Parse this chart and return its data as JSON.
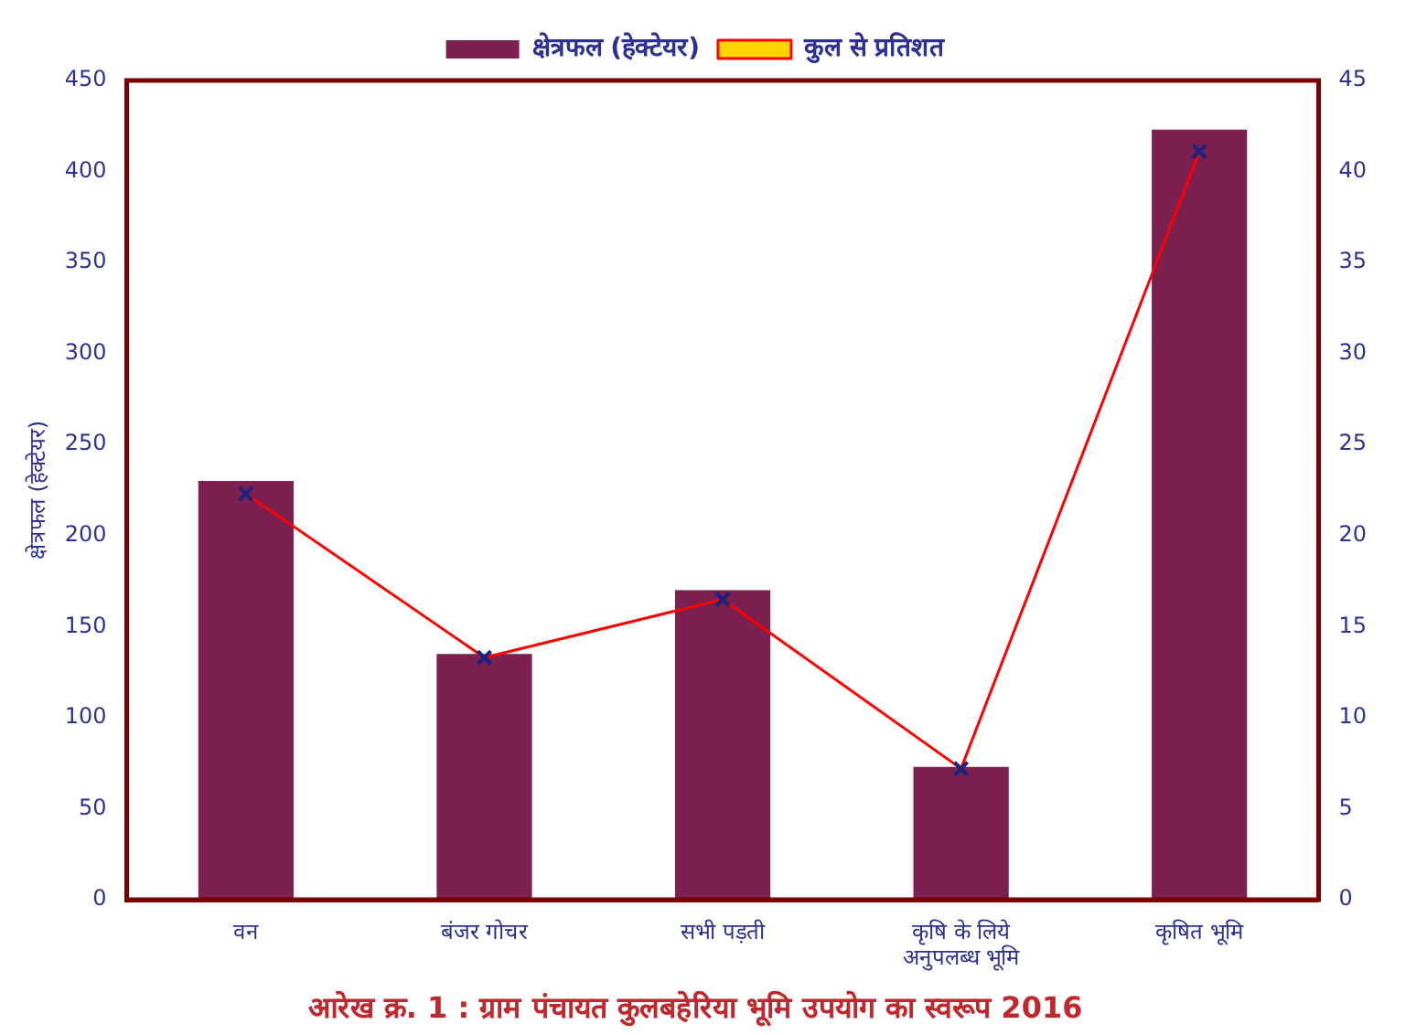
{
  "chart_data": {
    "type": "bar",
    "title": "आरेख क्र. 1 : ग्राम पंचायत कुलबहेरिया भूमि उपयोग का स्वरूप 2016",
    "ylabel": "क्षेत्रफल (हेक्टेयर)",
    "categories": [
      "वन",
      "बंजर गोचर",
      "सभी पड़ती",
      "कृषि के लिये अनुपलब्ध भूमि",
      "कृषित भूमि"
    ],
    "series": [
      {
        "name": "क्षेत्रफल (हेक्टेयर)",
        "color": "#7b2050",
        "values": [
          230,
          135,
          170,
          73,
          423
        ]
      },
      {
        "name": "कुल से प्रतिशत",
        "type": "line",
        "axis": "y2",
        "color": "#ff0000",
        "values": [
          22.3,
          13.3,
          16.5,
          7.2,
          41.1
        ]
      }
    ],
    "ylim": [
      0,
      450
    ],
    "yticks": [
      0,
      50,
      100,
      150,
      200,
      250,
      300,
      350,
      400,
      450
    ],
    "y2lim": [
      0,
      45
    ],
    "y2ticks": [
      0,
      5,
      10,
      15,
      20,
      25,
      30,
      35,
      40,
      45
    ],
    "legend": "top",
    "marker": "cross",
    "grid": false
  }
}
